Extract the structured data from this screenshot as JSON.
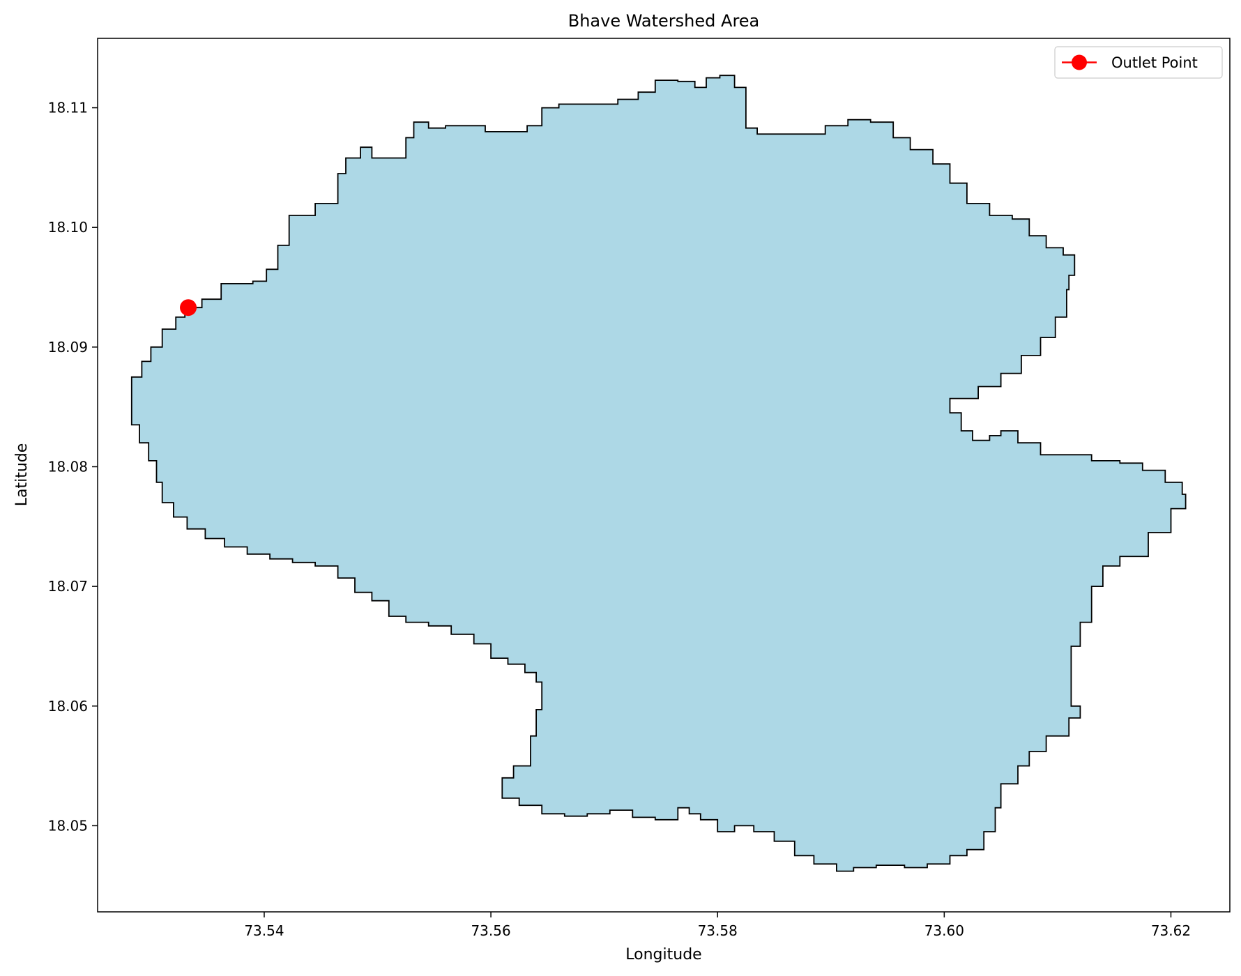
{
  "chart_data": {
    "type": "map",
    "title": "Bhave Watershed Area",
    "xlabel": "Longitude",
    "ylabel": "Latitude",
    "xlim": [
      73.5253,
      73.6252
    ],
    "ylim": [
      18.0428,
      18.1158
    ],
    "xticks": [
      {
        "value": 73.54,
        "label": "73.54"
      },
      {
        "value": 73.56,
        "label": "73.56"
      },
      {
        "value": 73.58,
        "label": "73.58"
      },
      {
        "value": 73.6,
        "label": "73.60"
      },
      {
        "value": 73.62,
        "label": "73.62"
      }
    ],
    "yticks": [
      {
        "value": 18.05,
        "label": "18.05"
      },
      {
        "value": 18.06,
        "label": "18.06"
      },
      {
        "value": 18.07,
        "label": "18.07"
      },
      {
        "value": 18.08,
        "label": "18.08"
      },
      {
        "value": 18.09,
        "label": "18.09"
      },
      {
        "value": 18.1,
        "label": "18.10"
      },
      {
        "value": 18.11,
        "label": "18.11"
      }
    ],
    "grid": false,
    "legend": {
      "position": "top-right",
      "entries": [
        {
          "label": "Outlet Point",
          "color": "#ff0000"
        }
      ]
    },
    "watershed": {
      "fill": "#add8e6",
      "edge": "#000000",
      "boundary": [
        [
          73.533,
          18.0933
        ],
        [
          73.5345,
          18.094
        ],
        [
          73.5362,
          18.0953
        ],
        [
          73.539,
          18.0955
        ],
        [
          73.5402,
          18.0965
        ],
        [
          73.5412,
          18.0985
        ],
        [
          73.5422,
          18.101
        ],
        [
          73.5445,
          18.102
        ],
        [
          73.5465,
          18.1033
        ],
        [
          73.5465,
          18.1045
        ],
        [
          73.5472,
          18.1058
        ],
        [
          73.5485,
          18.1067
        ],
        [
          73.5495,
          18.1058
        ],
        [
          73.551,
          18.1058
        ],
        [
          73.5525,
          18.1075
        ],
        [
          73.5532,
          18.1088
        ],
        [
          73.5545,
          18.1083
        ],
        [
          73.556,
          18.1085
        ],
        [
          73.5582,
          18.1085
        ],
        [
          73.5595,
          18.108
        ],
        [
          73.5615,
          18.108
        ],
        [
          73.5632,
          18.1085
        ],
        [
          73.5645,
          18.11
        ],
        [
          73.566,
          18.1103
        ],
        [
          73.5685,
          18.1103
        ],
        [
          73.5712,
          18.1107
        ],
        [
          73.573,
          18.1113
        ],
        [
          73.5745,
          18.1123
        ],
        [
          73.5765,
          18.1122
        ],
        [
          73.578,
          18.1117
        ],
        [
          73.579,
          18.1125
        ],
        [
          73.5802,
          18.1127
        ],
        [
          73.5815,
          18.1117
        ],
        [
          73.5825,
          18.1107
        ],
        [
          73.5825,
          18.1083
        ],
        [
          73.5835,
          18.1078
        ],
        [
          73.586,
          18.1078
        ],
        [
          73.588,
          18.1078
        ],
        [
          73.5895,
          18.1085
        ],
        [
          73.5915,
          18.109
        ],
        [
          73.5935,
          18.1088
        ],
        [
          73.5955,
          18.1075
        ],
        [
          73.597,
          18.1065
        ],
        [
          73.599,
          18.1053
        ],
        [
          73.6005,
          18.1037
        ],
        [
          73.602,
          18.102
        ],
        [
          73.604,
          18.101
        ],
        [
          73.606,
          18.1007
        ],
        [
          73.6075,
          18.0993
        ],
        [
          73.609,
          18.0983
        ],
        [
          73.6105,
          18.0977
        ],
        [
          73.6115,
          18.096
        ],
        [
          73.611,
          18.0948
        ],
        [
          73.6108,
          18.0925
        ],
        [
          73.6098,
          18.0908
        ],
        [
          73.6085,
          18.0893
        ],
        [
          73.6068,
          18.0878
        ],
        [
          73.605,
          18.0867
        ],
        [
          73.603,
          18.0857
        ],
        [
          73.6005,
          18.0845
        ],
        [
          73.6015,
          18.083
        ],
        [
          73.6025,
          18.0822
        ],
        [
          73.604,
          18.0826
        ],
        [
          73.605,
          18.083
        ],
        [
          73.6065,
          18.082
        ],
        [
          73.6085,
          18.081
        ],
        [
          73.611,
          18.081
        ],
        [
          73.613,
          18.0805
        ],
        [
          73.6155,
          18.0803
        ],
        [
          73.6175,
          18.0797
        ],
        [
          73.6195,
          18.0787
        ],
        [
          73.621,
          18.0777
        ],
        [
          73.6213,
          18.0765
        ],
        [
          73.62,
          18.0745
        ],
        [
          73.618,
          18.0725
        ],
        [
          73.6155,
          18.0717
        ],
        [
          73.614,
          18.07
        ],
        [
          73.613,
          18.0687
        ],
        [
          73.613,
          18.067
        ],
        [
          73.612,
          18.065
        ],
        [
          73.6112,
          18.063
        ],
        [
          73.6112,
          18.06
        ],
        [
          73.612,
          18.059
        ],
        [
          73.611,
          18.0575
        ],
        [
          73.609,
          18.0562
        ],
        [
          73.6075,
          18.055
        ],
        [
          73.6065,
          18.0535
        ],
        [
          73.605,
          18.0515
        ],
        [
          73.6045,
          18.0495
        ],
        [
          73.6035,
          18.048
        ],
        [
          73.602,
          18.0475
        ],
        [
          73.6005,
          18.0468
        ],
        [
          73.5985,
          18.0465
        ],
        [
          73.5965,
          18.0467
        ],
        [
          73.594,
          18.0465
        ],
        [
          73.592,
          18.0462
        ],
        [
          73.5905,
          18.0468
        ],
        [
          73.5885,
          18.0475
        ],
        [
          73.5868,
          18.0487
        ],
        [
          73.585,
          18.0495
        ],
        [
          73.5832,
          18.05
        ],
        [
          73.5815,
          18.0495
        ],
        [
          73.58,
          18.0505
        ],
        [
          73.5785,
          18.051
        ],
        [
          73.5775,
          18.0515
        ],
        [
          73.5765,
          18.0505
        ],
        [
          73.5745,
          18.0507
        ],
        [
          73.5725,
          18.0513
        ],
        [
          73.5705,
          18.051
        ],
        [
          73.5685,
          18.0508
        ],
        [
          73.5665,
          18.051
        ],
        [
          73.5645,
          18.0517
        ],
        [
          73.5625,
          18.0523
        ],
        [
          73.561,
          18.054
        ],
        [
          73.562,
          18.055
        ],
        [
          73.5635,
          18.0575
        ],
        [
          73.564,
          18.0597
        ],
        [
          73.5645,
          18.062
        ],
        [
          73.564,
          18.0628
        ],
        [
          73.563,
          18.0635
        ],
        [
          73.5615,
          18.064
        ],
        [
          73.56,
          18.0652
        ],
        [
          73.5585,
          18.066
        ],
        [
          73.5565,
          18.0667
        ],
        [
          73.5545,
          18.067
        ],
        [
          73.5525,
          18.0675
        ],
        [
          73.551,
          18.0688
        ],
        [
          73.5495,
          18.0695
        ],
        [
          73.548,
          18.0707
        ],
        [
          73.5465,
          18.0717
        ],
        [
          73.5445,
          18.072
        ],
        [
          73.5425,
          18.0723
        ],
        [
          73.5405,
          18.0727
        ],
        [
          73.5385,
          18.0733
        ],
        [
          73.5365,
          18.074
        ],
        [
          73.5348,
          18.0748
        ],
        [
          73.5332,
          18.0758
        ],
        [
          73.532,
          18.077
        ],
        [
          73.531,
          18.0787
        ],
        [
          73.5305,
          18.0805
        ],
        [
          73.5298,
          18.082
        ],
        [
          73.529,
          18.0835
        ],
        [
          73.5283,
          18.0855
        ],
        [
          73.5283,
          18.0875
        ],
        [
          73.5292,
          18.0888
        ],
        [
          73.53,
          18.09
        ],
        [
          73.531,
          18.0915
        ],
        [
          73.5322,
          18.0925
        ],
        [
          73.533,
          18.0933
        ]
      ]
    },
    "outlet": {
      "label": "Outlet Point",
      "lon": 73.5333,
      "lat": 18.0933,
      "color": "#ff0000"
    }
  }
}
